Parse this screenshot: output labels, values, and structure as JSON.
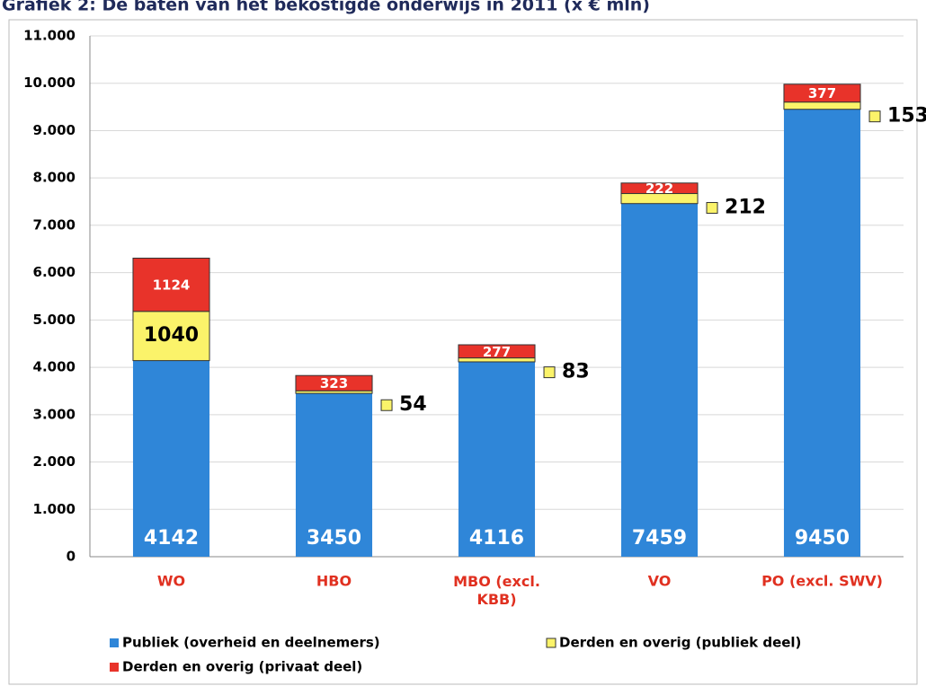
{
  "chart_data": {
    "type": "stacked_bar",
    "title": "Grafiek 2: De baten van het bekostigde onderwijs in 2011 (x € mln)",
    "categories": [
      "WO",
      "HBO",
      "MBO (excl. KBB)",
      "VO",
      "PO (excl. SWV)"
    ],
    "series": [
      {
        "name": "Publiek (overheid en deelnemers)",
        "color": "#2f86d8",
        "values": [
          4142,
          3450,
          4116,
          7459,
          9450
        ]
      },
      {
        "name": "Derden en overig (publiek deel)",
        "color": "#fbf36a",
        "values": [
          1040,
          54,
          83,
          212,
          153
        ]
      },
      {
        "name": "Derden en overig (privaat deel)",
        "color": "#e8332a",
        "values": [
          1124,
          323,
          277,
          222,
          377
        ]
      }
    ],
    "ylim": [
      0,
      11000
    ],
    "yticks": [
      0,
      {
        "value": 1000,
        "label": "1.000"
      },
      {
        "value": 2000,
        "label": "2.000"
      },
      {
        "value": 3000,
        "label": "3.000"
      },
      {
        "value": 4000,
        "label": "4.000"
      },
      {
        "value": 5000,
        "label": "5.000"
      },
      {
        "value": 6000,
        "label": "6.000"
      },
      {
        "value": 7000,
        "label": "7.000"
      },
      {
        "value": 8000,
        "label": "8.000"
      },
      {
        "value": 9000,
        "label": "9.000"
      },
      {
        "value": 10000,
        "label": "10.000"
      },
      {
        "value": 11000,
        "label": "11.000"
      }
    ],
    "grid": true
  }
}
